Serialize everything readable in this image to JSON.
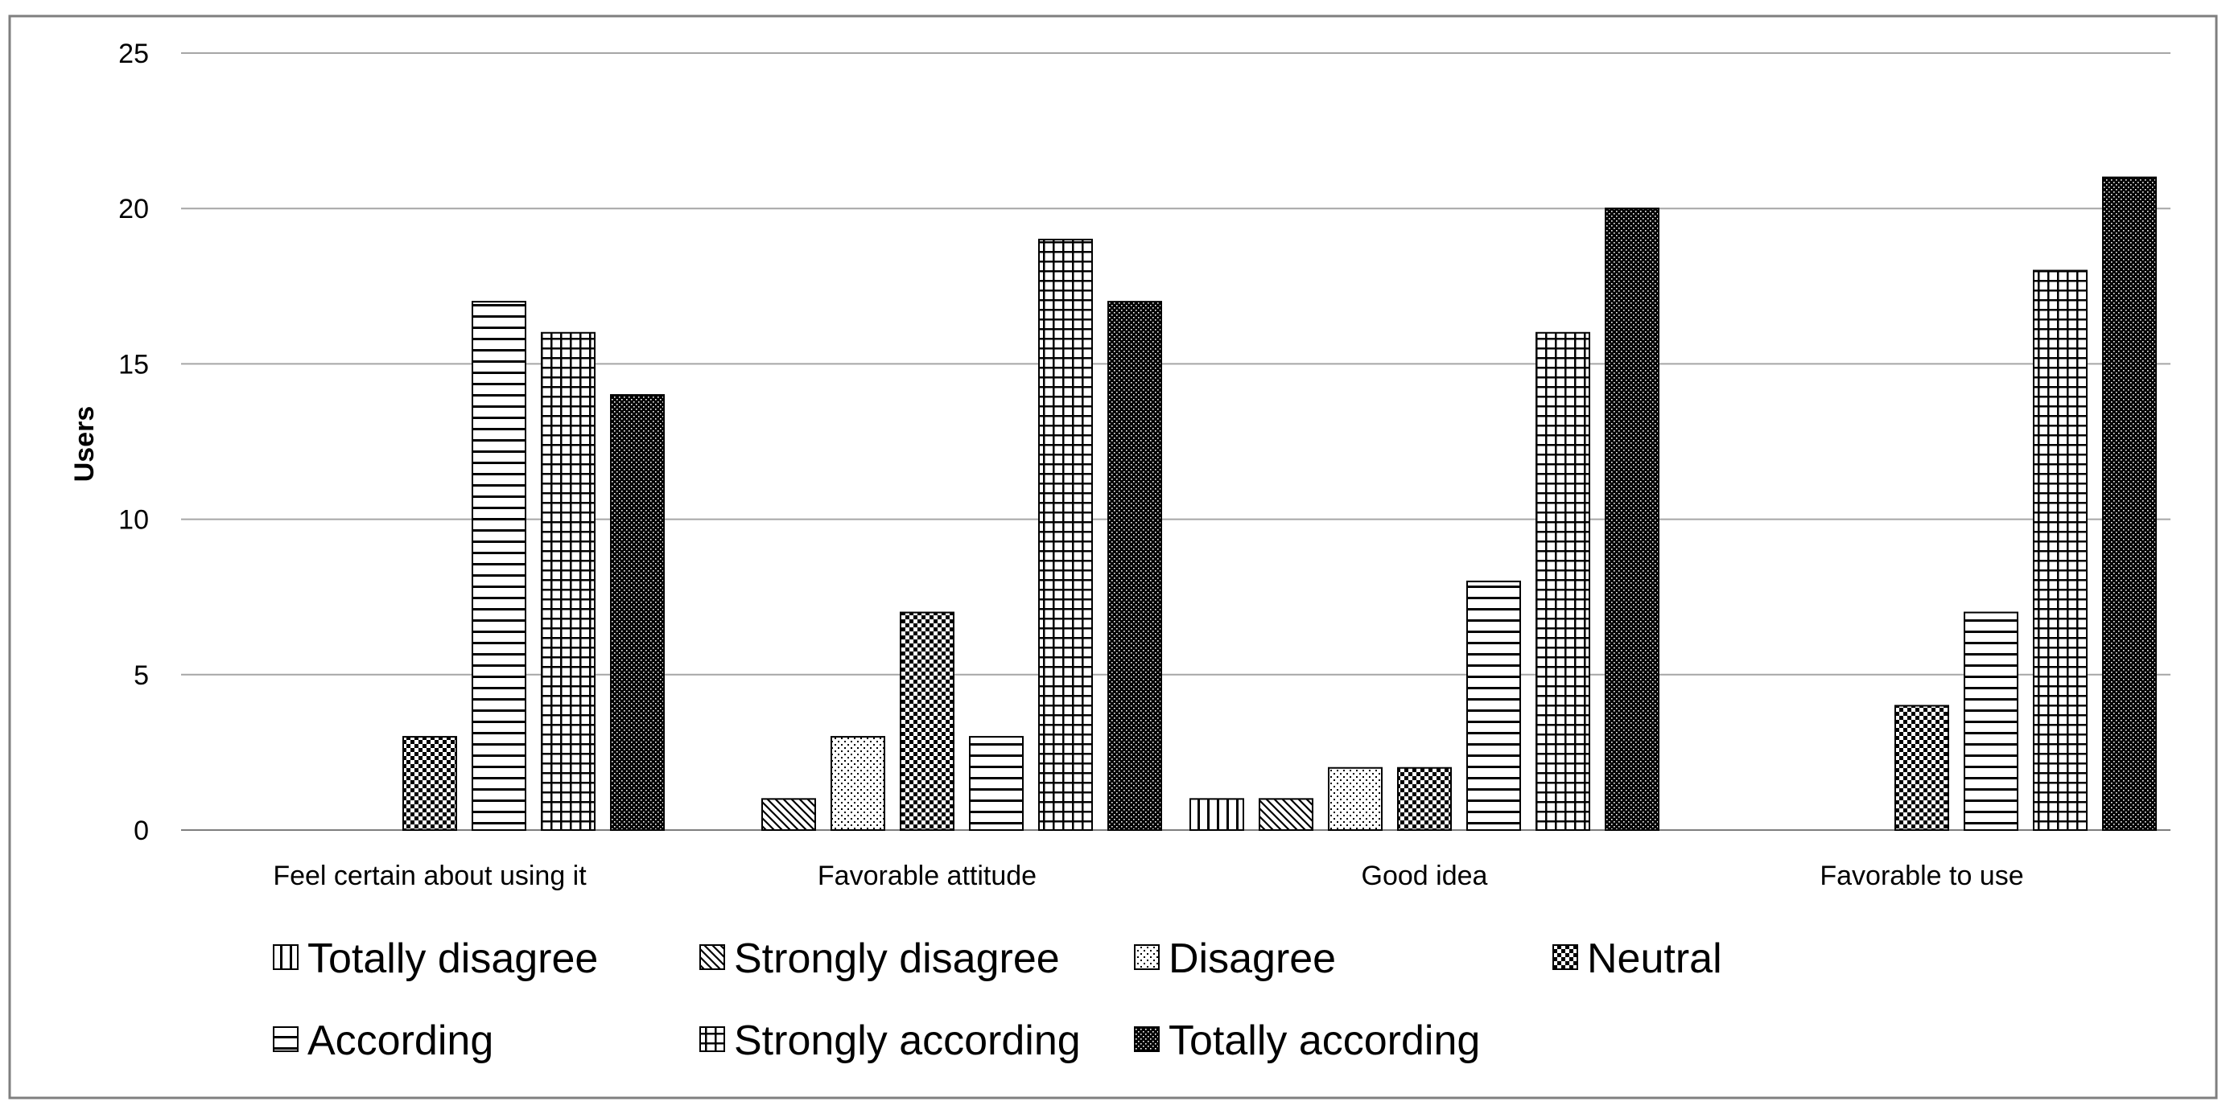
{
  "chart_data": {
    "type": "bar",
    "title": "",
    "xlabel": "",
    "ylabel": "Users",
    "ylim": [
      0,
      25
    ],
    "yticks": [
      0,
      5,
      10,
      15,
      20,
      25
    ],
    "grid": true,
    "legend_position": "bottom",
    "categories": [
      "Feel certain about using it",
      "Favorable attitude",
      "Good idea",
      "Favorable to use"
    ],
    "series": [
      {
        "name": "Totally disagree",
        "pattern": "vertical",
        "values": [
          0,
          0,
          1,
          0
        ]
      },
      {
        "name": "Strongly disagree",
        "pattern": "diagonal",
        "values": [
          0,
          1,
          1,
          0
        ]
      },
      {
        "name": "Disagree",
        "pattern": "dots",
        "values": [
          0,
          3,
          2,
          0
        ]
      },
      {
        "name": "Neutral",
        "pattern": "checker",
        "values": [
          3,
          7,
          2,
          4
        ]
      },
      {
        "name": "According",
        "pattern": "horizontal",
        "values": [
          17,
          3,
          8,
          7
        ]
      },
      {
        "name": "Strongly according",
        "pattern": "grid",
        "values": [
          16,
          19,
          16,
          18
        ]
      },
      {
        "name": "Totally according",
        "pattern": "dense",
        "values": [
          14,
          17,
          20,
          21
        ]
      }
    ],
    "colors": {
      "frame": "#7f7f7f",
      "gridline": "#a6a6a6",
      "bar_stroke": "#000000",
      "fill": "#000000"
    }
  }
}
